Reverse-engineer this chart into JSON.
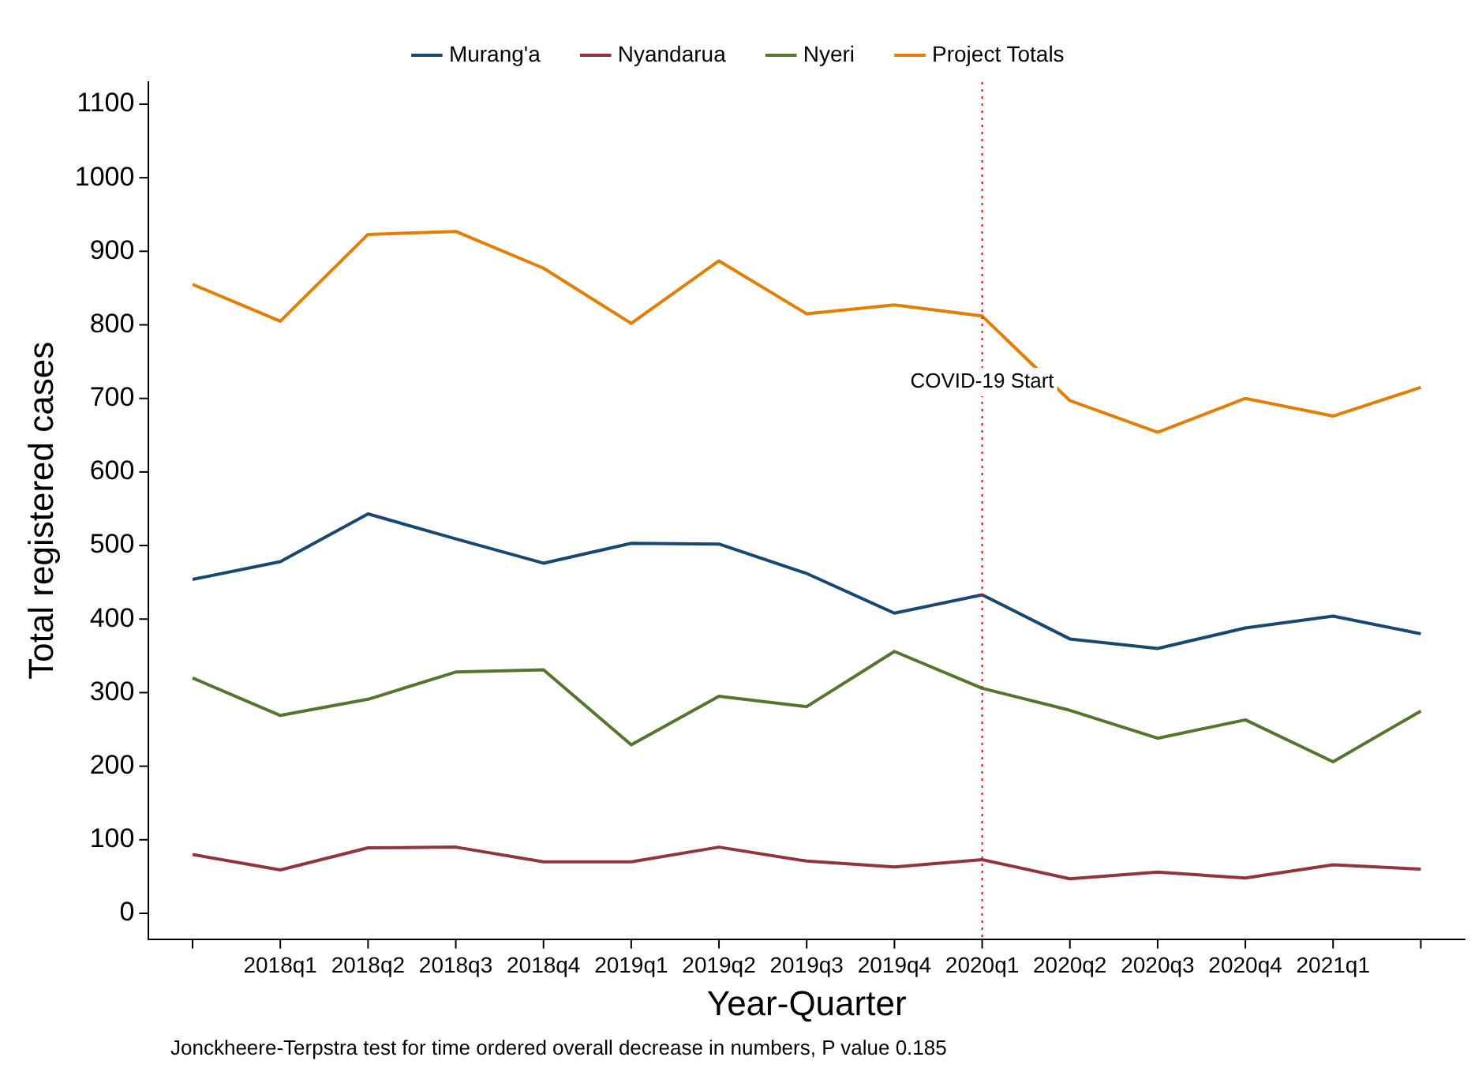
{
  "chart_data": {
    "type": "line",
    "xlabel": "Year-Quarter",
    "ylabel": "Total registered cases",
    "categories": [
      null,
      "2018q1",
      "2018q2",
      "2018q3",
      "2018q4",
      "2019q1",
      "2019q2",
      "2019q3",
      "2019q4",
      "2020q1",
      "2020q2",
      "2020q3",
      "2020q4",
      "2021q1",
      null
    ],
    "series": [
      {
        "name": "Murang'a",
        "color": "#1a476f",
        "values": [
          454,
          478,
          543,
          509,
          476,
          503,
          502,
          462,
          408,
          433,
          373,
          360,
          388,
          404,
          380
        ]
      },
      {
        "name": "Nyandarua",
        "color": "#90353b",
        "values": [
          80,
          59,
          89,
          90,
          70,
          70,
          90,
          71,
          63,
          73,
          47,
          56,
          48,
          66,
          60
        ]
      },
      {
        "name": "Nyeri",
        "color": "#55752f",
        "values": [
          320,
          269,
          291,
          328,
          331,
          229,
          295,
          281,
          356,
          306,
          276,
          238,
          263,
          206,
          275
        ]
      },
      {
        "name": "Project Totals",
        "color": "#e37e00",
        "values": [
          855,
          805,
          923,
          927,
          877,
          802,
          887,
          815,
          827,
          812,
          697,
          654,
          700,
          676,
          715
        ]
      }
    ],
    "ylim": [
      -35,
      1130
    ],
    "yticks": [
      0,
      100,
      200,
      300,
      400,
      500,
      600,
      700,
      800,
      900,
      1000,
      1100
    ],
    "ref_lines": [
      {
        "axis": "x",
        "value": "2020q1",
        "label": "COVID-19 Start",
        "color": "#ff0000",
        "line_style": "dotted"
      }
    ],
    "annotations": [
      "Jonckheere-Terpstra test for time ordered overall decrease in numbers, P value 0.185"
    ],
    "legend": "top",
    "grid": false,
    "marker": "none",
    "line_style": "solid"
  }
}
